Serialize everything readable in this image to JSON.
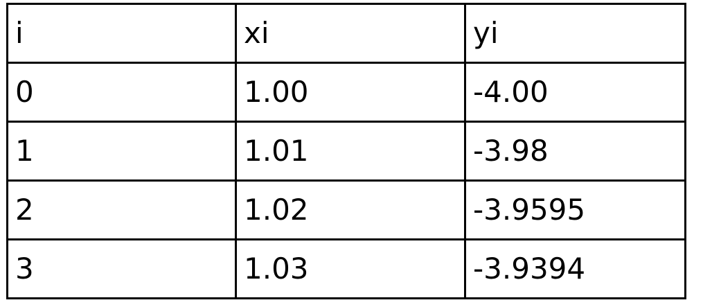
{
  "table": {
    "headers": [
      "i",
      "xi",
      "yi"
    ],
    "rows": [
      [
        "0",
        "1.00",
        "-4.00"
      ],
      [
        "1",
        "1.01",
        "-3.98"
      ],
      [
        "2",
        "1.02",
        "-3.9595"
      ],
      [
        "3",
        "1.03",
        "-3.9394"
      ]
    ]
  }
}
